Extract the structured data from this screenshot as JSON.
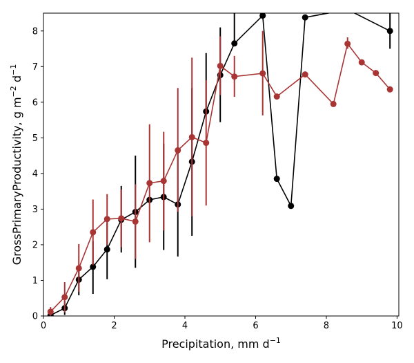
{
  "chart_data": {
    "type": "line",
    "xlabel": "Precipitation,  mm d",
    "xlabel_sup": "−1",
    "ylabel_parts": [
      "GrossPrimaryProductivity,  g m",
      "−2",
      " d",
      "−1"
    ],
    "xlim": [
      0,
      10.05
    ],
    "ylim": [
      0,
      8.5
    ],
    "xticks": [
      0,
      2,
      4,
      6,
      8,
      10
    ],
    "yticks": [
      0,
      1,
      2,
      3,
      4,
      5,
      6,
      7,
      8
    ],
    "grid": false,
    "series": [
      {
        "color": "#000000",
        "x": [
          0.2,
          0.6,
          1.0,
          1.4,
          1.8,
          2.2,
          2.6,
          3.0,
          3.4,
          3.8,
          4.2,
          4.6,
          5.0,
          5.4,
          6.2,
          6.6,
          7.0,
          7.4,
          8.6,
          9.8
        ],
        "y": [
          0.02,
          0.22,
          1.02,
          1.38,
          1.87,
          2.7,
          2.92,
          3.26,
          3.34,
          3.13,
          4.33,
          5.74,
          6.76,
          7.65,
          8.43,
          3.85,
          3.09,
          8.38,
          8.6,
          8.0
        ],
        "err_low": [
          0.0,
          0.03,
          0.58,
          0.62,
          1.03,
          1.78,
          1.35,
          3.26,
          1.85,
          1.67,
          2.25,
          5.74,
          5.44,
          7.65,
          8.43,
          3.85,
          3.09,
          8.38,
          8.6,
          7.5
        ],
        "err_high": [
          0.05,
          0.42,
          1.42,
          2.1,
          2.7,
          3.65,
          4.5,
          3.26,
          4.84,
          4.6,
          6.4,
          7.38,
          8.1,
          8.9,
          8.9,
          3.85,
          3.09,
          8.38,
          8.9,
          8.9
        ]
      },
      {
        "color": "#a83434",
        "x": [
          0.2,
          0.6,
          1.0,
          1.4,
          1.8,
          2.2,
          2.6,
          3.0,
          3.4,
          3.8,
          4.2,
          4.6,
          5.0,
          5.4,
          6.2,
          6.6,
          7.4,
          8.2,
          8.6,
          9.0,
          9.4,
          9.8
        ],
        "y": [
          0.12,
          0.53,
          1.34,
          2.35,
          2.72,
          2.74,
          2.65,
          3.73,
          3.79,
          4.65,
          5.02,
          4.86,
          7.02,
          6.72,
          6.81,
          6.16,
          6.78,
          5.95,
          7.64,
          7.12,
          6.82,
          6.36
        ],
        "err_low": [
          0.0,
          0.1,
          0.68,
          1.43,
          2.0,
          1.93,
          1.6,
          2.07,
          2.4,
          2.92,
          2.8,
          3.1,
          6.2,
          6.15,
          5.63,
          6.16,
          6.78,
          5.95,
          7.5,
          7.12,
          6.82,
          6.36
        ],
        "err_high": [
          0.25,
          0.95,
          2.02,
          3.27,
          3.42,
          3.55,
          3.7,
          5.38,
          5.17,
          6.4,
          7.25,
          6.62,
          7.85,
          7.3,
          8.0,
          6.16,
          6.78,
          5.95,
          7.82,
          7.12,
          6.82,
          6.36
        ]
      }
    ]
  }
}
